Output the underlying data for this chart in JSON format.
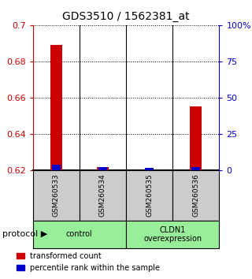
{
  "title": "GDS3510 / 1562381_at",
  "samples": [
    "GSM260533",
    "GSM260534",
    "GSM260535",
    "GSM260536"
  ],
  "red_values": [
    0.689,
    0.6215,
    0.62,
    0.655
  ],
  "blue_values": [
    0.6228,
    0.6215,
    0.6213,
    0.6218
  ],
  "ylim": [
    0.62,
    0.7
  ],
  "yticks": [
    0.62,
    0.64,
    0.66,
    0.68,
    0.7
  ],
  "y2lim": [
    0,
    100
  ],
  "y2ticks": [
    0,
    25,
    50,
    75,
    100
  ],
  "y2labels": [
    "0",
    "25",
    "50",
    "75",
    "100%"
  ],
  "left_color": "#cc0000",
  "right_color": "#0000cc",
  "red_bar_width": 0.25,
  "blue_bar_width": 0.18,
  "protocol_labels": [
    "control",
    "CLDN1\noverexpression"
  ],
  "protocol_color": "#99ee99",
  "sample_bg_color": "#cccccc",
  "plot_bg_color": "#ffffff",
  "legend_red_label": "transformed count",
  "legend_blue_label": "percentile rank within the sample"
}
